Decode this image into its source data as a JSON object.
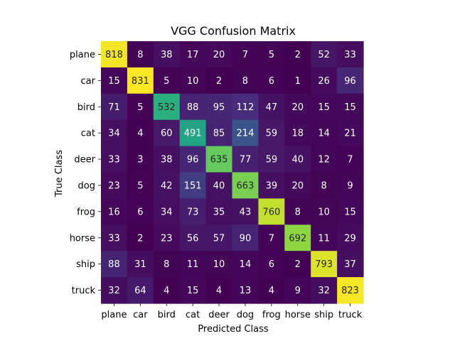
{
  "chart_data": {
    "type": "heatmap",
    "title": "VGG Confusion Matrix",
    "xlabel": "Predicted Class",
    "ylabel": "True Class",
    "x_categories": [
      "plane",
      "car",
      "bird",
      "cat",
      "deer",
      "dog",
      "frog",
      "horse",
      "ship",
      "truck"
    ],
    "y_categories": [
      "plane",
      "car",
      "bird",
      "cat",
      "deer",
      "dog",
      "frog",
      "horse",
      "ship",
      "truck"
    ],
    "values": [
      [
        818,
        8,
        38,
        17,
        20,
        7,
        5,
        2,
        52,
        33
      ],
      [
        15,
        831,
        5,
        10,
        2,
        8,
        6,
        1,
        26,
        96
      ],
      [
        71,
        5,
        532,
        88,
        95,
        112,
        47,
        20,
        15,
        15
      ],
      [
        34,
        4,
        60,
        491,
        85,
        214,
        59,
        18,
        14,
        21
      ],
      [
        33,
        3,
        38,
        96,
        635,
        77,
        59,
        40,
        12,
        7
      ],
      [
        23,
        5,
        42,
        151,
        40,
        663,
        39,
        20,
        8,
        9
      ],
      [
        16,
        6,
        34,
        73,
        35,
        43,
        760,
        8,
        10,
        15
      ],
      [
        33,
        2,
        23,
        56,
        57,
        90,
        7,
        692,
        11,
        29
      ],
      [
        88,
        31,
        8,
        11,
        10,
        14,
        6,
        2,
        793,
        37
      ],
      [
        32,
        64,
        4,
        15,
        4,
        13,
        4,
        9,
        32,
        823
      ]
    ],
    "colormap": "viridis",
    "vmin": 1,
    "vmax": 831
  }
}
